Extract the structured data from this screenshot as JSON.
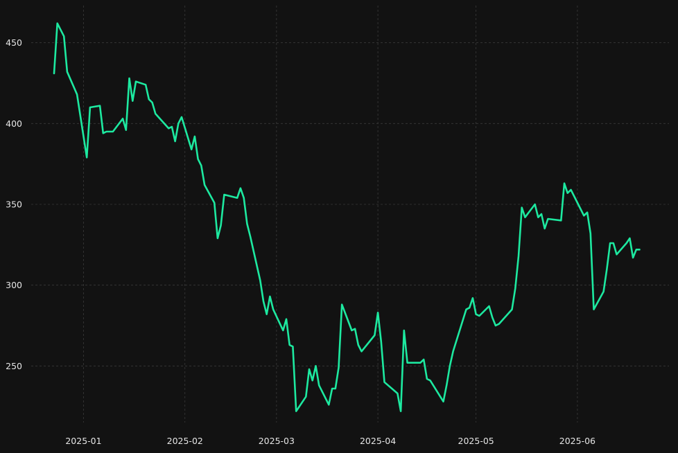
{
  "chart_data": {
    "type": "line",
    "title": "",
    "xlabel": "",
    "ylabel": "",
    "x_ticks": [
      "2025-01",
      "2025-02",
      "2025-03",
      "2025-04",
      "2025-05",
      "2025-06"
    ],
    "y_ticks": [
      250,
      300,
      350,
      400,
      450
    ],
    "xlim": [
      "2024-12-16",
      "2025-06-29"
    ],
    "ylim": [
      215,
      473
    ],
    "grid": true,
    "legend": "none",
    "series": [
      {
        "color": "#1de9a0",
        "x": [
          "2024-12-23",
          "2024-12-24",
          "2024-12-26",
          "2024-12-27",
          "2024-12-30",
          "2025-01-02",
          "2025-01-03",
          "2025-01-06",
          "2025-01-07",
          "2025-01-08",
          "2025-01-10",
          "2025-01-13",
          "2025-01-14",
          "2025-01-15",
          "2025-01-16",
          "2025-01-17",
          "2025-01-20",
          "2025-01-21",
          "2025-01-22",
          "2025-01-23",
          "2025-01-27",
          "2025-01-28",
          "2025-01-29",
          "2025-01-30",
          "2025-01-31",
          "2025-02-03",
          "2025-02-04",
          "2025-02-05",
          "2025-02-06",
          "2025-02-07",
          "2025-02-10",
          "2025-02-11",
          "2025-02-12",
          "2025-02-13",
          "2025-02-17",
          "2025-02-18",
          "2025-02-19",
          "2025-02-20",
          "2025-02-21",
          "2025-02-24",
          "2025-02-25",
          "2025-02-26",
          "2025-02-27",
          "2025-02-28",
          "2025-03-03",
          "2025-03-04",
          "2025-03-05",
          "2025-03-06",
          "2025-03-07",
          "2025-03-10",
          "2025-03-11",
          "2025-03-12",
          "2025-03-13",
          "2025-03-14",
          "2025-03-17",
          "2025-03-18",
          "2025-03-19",
          "2025-03-20",
          "2025-03-21",
          "2025-03-24",
          "2025-03-25",
          "2025-03-26",
          "2025-03-27",
          "2025-03-31",
          "2025-04-01",
          "2025-04-02",
          "2025-04-03",
          "2025-04-07",
          "2025-04-08",
          "2025-04-09",
          "2025-04-10",
          "2025-04-14",
          "2025-04-15",
          "2025-04-16",
          "2025-04-17",
          "2025-04-21",
          "2025-04-22",
          "2025-04-23",
          "2025-04-24",
          "2025-04-28",
          "2025-04-29",
          "2025-04-30",
          "2025-05-01",
          "2025-05-02",
          "2025-05-05",
          "2025-05-06",
          "2025-05-07",
          "2025-05-08",
          "2025-05-12",
          "2025-05-13",
          "2025-05-14",
          "2025-05-15",
          "2025-05-16",
          "2025-05-19",
          "2025-05-20",
          "2025-05-21",
          "2025-05-22",
          "2025-05-23",
          "2025-05-27",
          "2025-05-28",
          "2025-05-29",
          "2025-05-30",
          "2025-06-02",
          "2025-06-03",
          "2025-06-04",
          "2025-06-05",
          "2025-06-06",
          "2025-06-09",
          "2025-06-10",
          "2025-06-11",
          "2025-06-12",
          "2025-06-13",
          "2025-06-16",
          "2025-06-17",
          "2025-06-18",
          "2025-06-19",
          "2025-06-20"
        ],
        "y": [
          431,
          462,
          454,
          432,
          418,
          379,
          410,
          411,
          394,
          395,
          395,
          403,
          396,
          428,
          414,
          426,
          424,
          415,
          413,
          406,
          397,
          398,
          389,
          400,
          404,
          384,
          392,
          378,
          374,
          362,
          351,
          329,
          337,
          356,
          354,
          360,
          354,
          338,
          330,
          303,
          290,
          282,
          293,
          285,
          272,
          279,
          263,
          262,
          222,
          231,
          248,
          241,
          250,
          238,
          226,
          236,
          236,
          249,
          288,
          272,
          273,
          263,
          259,
          269,
          283,
          265,
          240,
          233,
          222,
          272,
          252,
          252,
          254,
          242,
          241,
          228,
          238,
          250,
          259,
          285,
          286,
          292,
          282,
          281,
          287,
          280,
          275,
          276,
          285,
          298,
          318,
          348,
          342,
          350,
          342,
          344,
          335,
          341,
          340,
          363,
          357,
          359,
          347,
          343,
          345,
          332,
          285,
          296,
          310,
          326,
          326,
          319,
          326,
          329,
          317,
          322,
          322
        ]
      }
    ]
  }
}
